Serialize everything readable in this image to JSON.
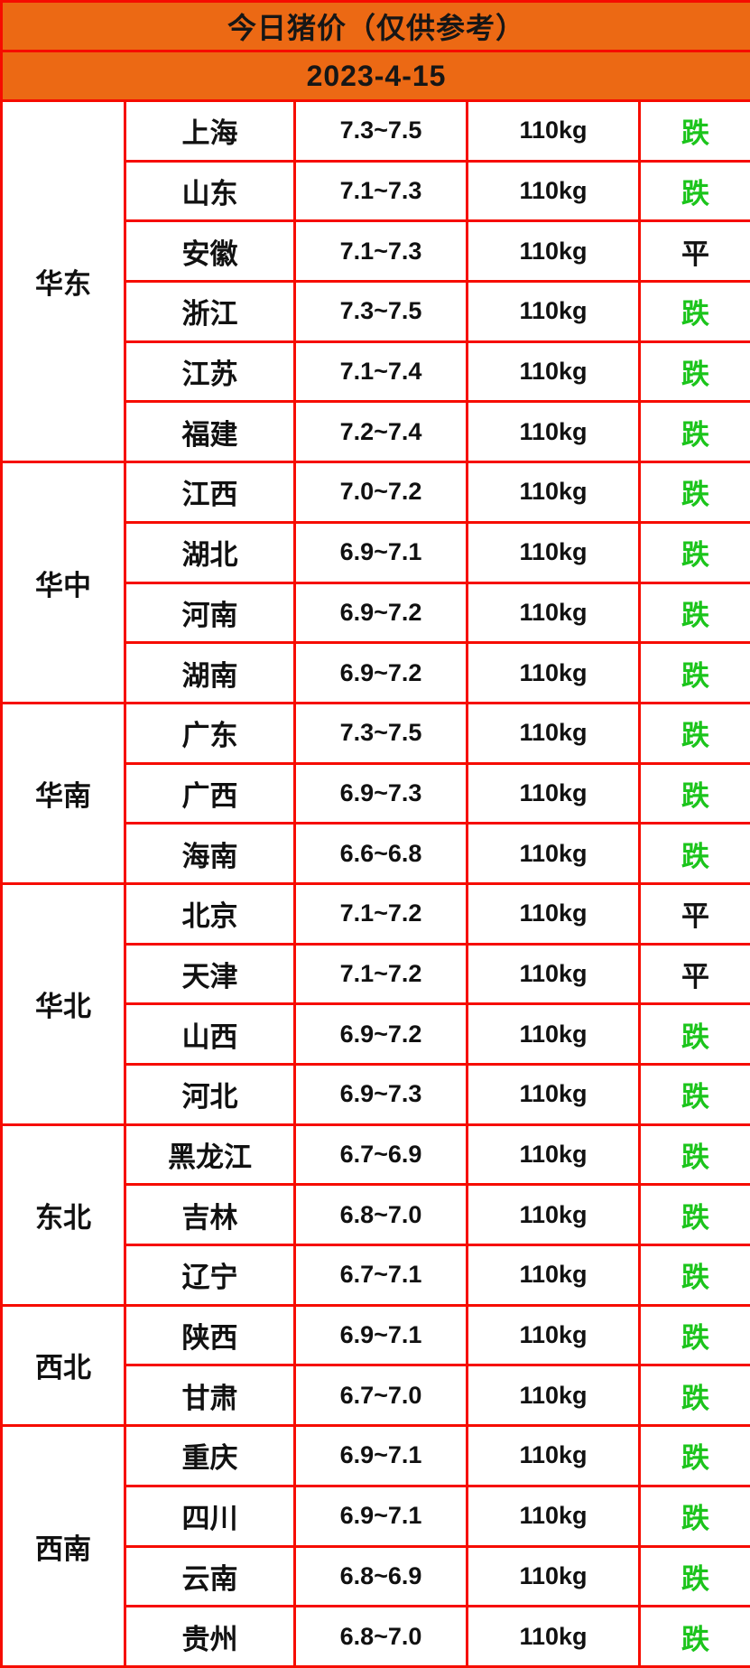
{
  "header": {
    "title": "今日猪价（仅供参考）",
    "date": "2023-4-15"
  },
  "colors": {
    "header_bg": "#ec6914",
    "grid_border": "#f60c00",
    "trend_fall_green": "#1bc41b",
    "text_black": "#111111"
  },
  "trend_legend": {
    "fall": "跌",
    "flat": "平"
  },
  "regions": [
    {
      "name": "华东",
      "rows": [
        {
          "province": "上海",
          "price": "7.3~7.5",
          "weight": "110kg",
          "trend": "跌"
        },
        {
          "province": "山东",
          "price": "7.1~7.3",
          "weight": "110kg",
          "trend": "跌"
        },
        {
          "province": "安徽",
          "price": "7.1~7.3",
          "weight": "110kg",
          "trend": "平"
        },
        {
          "province": "浙江",
          "price": "7.3~7.5",
          "weight": "110kg",
          "trend": "跌"
        },
        {
          "province": "江苏",
          "price": "7.1~7.4",
          "weight": "110kg",
          "trend": "跌"
        },
        {
          "province": "福建",
          "price": "7.2~7.4",
          "weight": "110kg",
          "trend": "跌"
        }
      ]
    },
    {
      "name": "华中",
      "rows": [
        {
          "province": "江西",
          "price": "7.0~7.2",
          "weight": "110kg",
          "trend": "跌"
        },
        {
          "province": "湖北",
          "price": "6.9~7.1",
          "weight": "110kg",
          "trend": "跌"
        },
        {
          "province": "河南",
          "price": "6.9~7.2",
          "weight": "110kg",
          "trend": "跌"
        },
        {
          "province": "湖南",
          "price": "6.9~7.2",
          "weight": "110kg",
          "trend": "跌"
        }
      ]
    },
    {
      "name": "华南",
      "rows": [
        {
          "province": "广东",
          "price": "7.3~7.5",
          "weight": "110kg",
          "trend": "跌"
        },
        {
          "province": "广西",
          "price": "6.9~7.3",
          "weight": "110kg",
          "trend": "跌"
        },
        {
          "province": "海南",
          "price": "6.6~6.8",
          "weight": "110kg",
          "trend": "跌"
        }
      ]
    },
    {
      "name": "华北",
      "rows": [
        {
          "province": "北京",
          "price": "7.1~7.2",
          "weight": "110kg",
          "trend": "平"
        },
        {
          "province": "天津",
          "price": "7.1~7.2",
          "weight": "110kg",
          "trend": "平"
        },
        {
          "province": "山西",
          "price": "6.9~7.2",
          "weight": "110kg",
          "trend": "跌"
        },
        {
          "province": "河北",
          "price": "6.9~7.3",
          "weight": "110kg",
          "trend": "跌"
        }
      ]
    },
    {
      "name": "东北",
      "rows": [
        {
          "province": "黑龙江",
          "price": "6.7~6.9",
          "weight": "110kg",
          "trend": "跌"
        },
        {
          "province": "吉林",
          "price": "6.8~7.0",
          "weight": "110kg",
          "trend": "跌"
        },
        {
          "province": "辽宁",
          "price": "6.7~7.1",
          "weight": "110kg",
          "trend": "跌"
        }
      ]
    },
    {
      "name": "西北",
      "rows": [
        {
          "province": "陕西",
          "price": "6.9~7.1",
          "weight": "110kg",
          "trend": "跌"
        },
        {
          "province": "甘肃",
          "price": "6.7~7.0",
          "weight": "110kg",
          "trend": "跌"
        }
      ]
    },
    {
      "name": "西南",
      "rows": [
        {
          "province": "重庆",
          "price": "6.9~7.1",
          "weight": "110kg",
          "trend": "跌"
        },
        {
          "province": "四川",
          "price": "6.9~7.1",
          "weight": "110kg",
          "trend": "跌"
        },
        {
          "province": "云南",
          "price": "6.8~6.9",
          "weight": "110kg",
          "trend": "跌"
        },
        {
          "province": "贵州",
          "price": "6.8~7.0",
          "weight": "110kg",
          "trend": "跌"
        }
      ]
    }
  ]
}
